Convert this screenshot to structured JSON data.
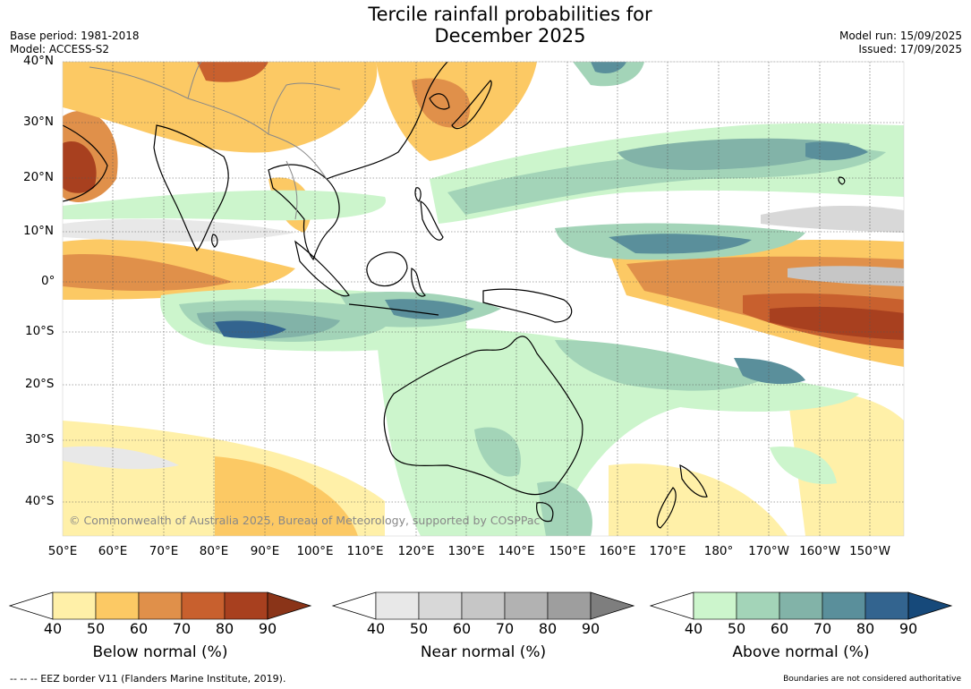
{
  "title_line1": "Tercile rainfall probabilities for",
  "title_line2": "December 2025",
  "base_period": "Base period: 1981-2018",
  "model": "Model: ACCESS-S2",
  "model_run": "Model run: 15/09/2025",
  "issued": "Issued: 17/09/2025",
  "lat_labels": [
    "40°N",
    "30°N",
    "20°N",
    "10°N",
    "0°",
    "10°S",
    "20°S",
    "30°S",
    "40°S"
  ],
  "lon_labels": [
    "50°E",
    "60°E",
    "70°E",
    "80°E",
    "90°E",
    "100°E",
    "110°E",
    "120°E",
    "130°E",
    "140°E",
    "150°E",
    "160°E",
    "170°E",
    "180°",
    "170°W",
    "160°W",
    "150°W"
  ],
  "copyright": "© Commonwealth of Australia 2025, Bureau of Meteorology, supported by COSPPac",
  "legends": [
    {
      "title": "Below normal (%)",
      "ticks": [
        "40",
        "50",
        "60",
        "70",
        "80",
        "90"
      ],
      "colors": [
        "#fff0a8",
        "#fcc964",
        "#e0904a",
        "#c8602e",
        "#a8401f",
        "#8a3418"
      ]
    },
    {
      "title": "Near normal (%)",
      "ticks": [
        "40",
        "50",
        "60",
        "70",
        "80",
        "90"
      ],
      "colors": [
        "#e8e8e8",
        "#d8d8d8",
        "#c6c6c6",
        "#b2b2b2",
        "#9e9e9e",
        "#7e7e7e"
      ]
    },
    {
      "title": "Above normal (%)",
      "ticks": [
        "40",
        "50",
        "60",
        "70",
        "80",
        "90"
      ],
      "colors": [
        "#ccf5cc",
        "#a3d4b8",
        "#82b3a8",
        "#5a8f9b",
        "#33648f",
        "#16497a"
      ]
    }
  ],
  "footer_left": "--  --  -- EEZ border V11 (Flanders Marine Institute, 2019).",
  "footer_right": "Boundaries are not considered authoritative"
}
